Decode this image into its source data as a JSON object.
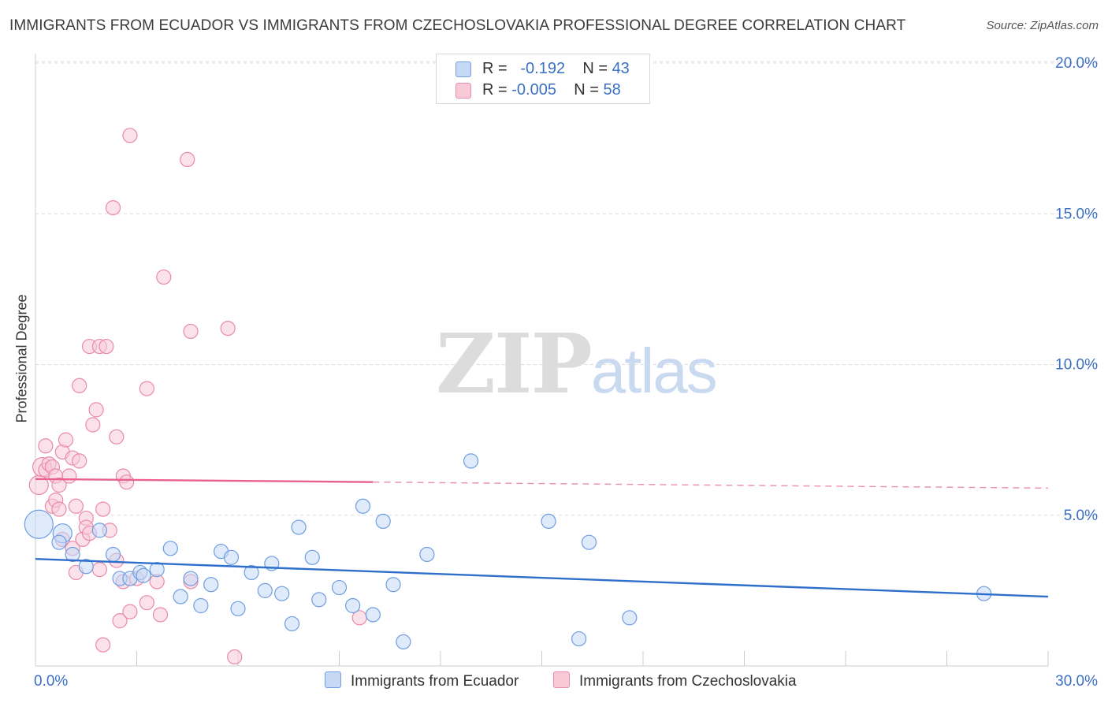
{
  "title": "IMMIGRANTS FROM ECUADOR VS IMMIGRANTS FROM CZECHOSLOVAKIA PROFESSIONAL DEGREE CORRELATION CHART",
  "source": "Source: ZipAtlas.com",
  "watermark": {
    "zip": "ZIP",
    "atlas": "atlas"
  },
  "legend": {
    "rows": [
      {
        "r_label": "R =",
        "r_value": "-0.192",
        "n_label": "N =",
        "n_value": "43"
      },
      {
        "r_label": "R =",
        "r_value": "-0.005",
        "n_label": "N =",
        "n_value": "58"
      }
    ]
  },
  "colors": {
    "ecuador_fill": "#c5d9f5",
    "ecuador_stroke": "#6f9ee0",
    "ecuador_line": "#2f6fcc",
    "czech_fill": "#f8cad8",
    "czech_stroke": "#e98aa8",
    "czech_line": "#e8628c",
    "axis_label": "#3a6fc4",
    "grid": "#dddddd"
  },
  "chart_data": {
    "type": "scatter",
    "title": "IMMIGRANTS FROM ECUADOR VS IMMIGRANTS FROM CZECHOSLOVAKIA PROFESSIONAL DEGREE CORRELATION CHART",
    "xlabel": "",
    "ylabel": "Professional Degree",
    "xlim": [
      0,
      30
    ],
    "ylim": [
      0,
      20
    ],
    "x_tick_labels": [
      "0.0%",
      "30.0%"
    ],
    "y_ticks": [
      5,
      10,
      15,
      20
    ],
    "y_tick_labels": [
      "5.0%",
      "10.0%",
      "15.0%",
      "20.0%"
    ],
    "grid": true,
    "series": [
      {
        "name": "Immigrants from Ecuador",
        "r": -0.192,
        "n": 43,
        "trend": {
          "x0": 0,
          "y0": 3.55,
          "x1": 30,
          "y1": 2.3,
          "solid_until": 30
        },
        "points": [
          [
            0.1,
            4.7,
            "L"
          ],
          [
            0.8,
            4.4,
            "M"
          ],
          [
            0.7,
            4.1
          ],
          [
            1.1,
            3.7
          ],
          [
            1.9,
            4.5
          ],
          [
            1.5,
            3.3
          ],
          [
            2.3,
            3.7
          ],
          [
            2.5,
            2.9
          ],
          [
            2.8,
            2.9
          ],
          [
            3.1,
            3.1
          ],
          [
            3.2,
            3.0
          ],
          [
            3.6,
            3.2
          ],
          [
            4.0,
            3.9
          ],
          [
            4.3,
            2.3
          ],
          [
            4.6,
            2.9
          ],
          [
            4.9,
            2.0
          ],
          [
            5.2,
            2.7
          ],
          [
            5.5,
            3.8
          ],
          [
            5.8,
            3.6
          ],
          [
            6.0,
            1.9
          ],
          [
            6.4,
            3.1
          ],
          [
            6.8,
            2.5
          ],
          [
            7.0,
            3.4
          ],
          [
            7.3,
            2.4
          ],
          [
            7.6,
            1.4
          ],
          [
            7.8,
            4.6
          ],
          [
            8.2,
            3.6
          ],
          [
            8.4,
            2.2
          ],
          [
            9.0,
            2.6
          ],
          [
            9.4,
            2.0
          ],
          [
            9.7,
            5.3
          ],
          [
            10.0,
            1.7
          ],
          [
            10.3,
            4.8
          ],
          [
            10.6,
            2.7
          ],
          [
            10.9,
            0.8
          ],
          [
            11.6,
            3.7
          ],
          [
            12.9,
            6.8
          ],
          [
            15.2,
            4.8
          ],
          [
            16.1,
            0.9
          ],
          [
            16.4,
            4.1
          ],
          [
            17.6,
            1.6
          ],
          [
            28.1,
            2.4
          ]
        ]
      },
      {
        "name": "Immigrants from Czechoslovakia",
        "r": -0.005,
        "n": 58,
        "trend": {
          "x0": 0,
          "y0": 6.2,
          "x1": 30,
          "y1": 5.9,
          "solid_until": 10.0
        },
        "points": [
          [
            0.1,
            6.0,
            "M"
          ],
          [
            0.2,
            6.6,
            "M"
          ],
          [
            0.3,
            6.5
          ],
          [
            0.3,
            7.3
          ],
          [
            0.4,
            6.7
          ],
          [
            0.5,
            6.6
          ],
          [
            0.5,
            5.3
          ],
          [
            0.6,
            5.5
          ],
          [
            0.6,
            6.3
          ],
          [
            0.7,
            6.0
          ],
          [
            0.7,
            5.2
          ],
          [
            0.8,
            7.1
          ],
          [
            0.8,
            4.2
          ],
          [
            0.9,
            7.5
          ],
          [
            1.0,
            6.3
          ],
          [
            1.1,
            6.9
          ],
          [
            1.1,
            3.9
          ],
          [
            1.2,
            3.1
          ],
          [
            1.2,
            5.3
          ],
          [
            1.3,
            6.8
          ],
          [
            1.3,
            9.3
          ],
          [
            1.4,
            4.2
          ],
          [
            1.5,
            4.9
          ],
          [
            1.5,
            4.6
          ],
          [
            1.6,
            4.4
          ],
          [
            1.6,
            10.6
          ],
          [
            1.7,
            8.0
          ],
          [
            1.8,
            8.5
          ],
          [
            1.9,
            10.6
          ],
          [
            1.9,
            3.2
          ],
          [
            2.0,
            0.7
          ],
          [
            2.0,
            5.2
          ],
          [
            2.1,
            10.6
          ],
          [
            2.2,
            4.5
          ],
          [
            2.3,
            15.2
          ],
          [
            2.4,
            7.6
          ],
          [
            2.4,
            3.5
          ],
          [
            2.5,
            1.5
          ],
          [
            2.6,
            2.8
          ],
          [
            2.6,
            6.3
          ],
          [
            2.7,
            6.1
          ],
          [
            2.8,
            17.6
          ],
          [
            2.8,
            1.8
          ],
          [
            3.0,
            2.9
          ],
          [
            3.3,
            9.2
          ],
          [
            3.3,
            2.1
          ],
          [
            3.6,
            2.8
          ],
          [
            3.7,
            1.7
          ],
          [
            3.8,
            12.9
          ],
          [
            4.5,
            16.8
          ],
          [
            4.6,
            2.8
          ],
          [
            4.6,
            11.1
          ],
          [
            5.7,
            11.2
          ],
          [
            5.9,
            0.3
          ],
          [
            9.6,
            1.6
          ]
        ]
      }
    ]
  }
}
